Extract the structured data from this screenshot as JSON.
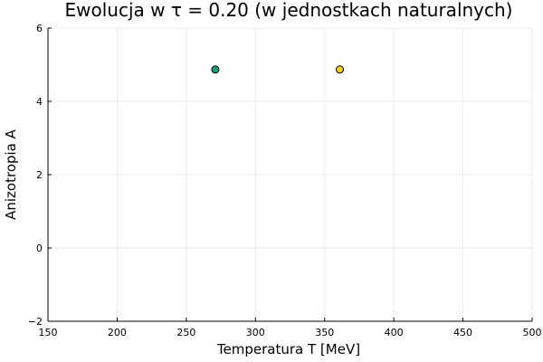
{
  "chart_data": {
    "type": "scatter",
    "title": "Ewolucja w τ = 0.20 (w jednostkach naturalnych)",
    "xlabel": "Temperatura T [MeV]",
    "ylabel": "Anizotropia A",
    "xlim": [
      150,
      500
    ],
    "ylim": [
      -2,
      6
    ],
    "xticks": [
      150,
      200,
      250,
      300,
      350,
      400,
      450,
      500
    ],
    "yticks": [
      -2,
      0,
      2,
      4,
      6
    ],
    "grid": true,
    "legend": "none",
    "series": [
      {
        "color": "#1b9e77",
        "points": [
          {
            "x": 271,
            "y": 4.87
          }
        ]
      },
      {
        "color": "#f2d21b",
        "points": [
          {
            "x": 361,
            "y": 4.87
          }
        ]
      }
    ]
  }
}
